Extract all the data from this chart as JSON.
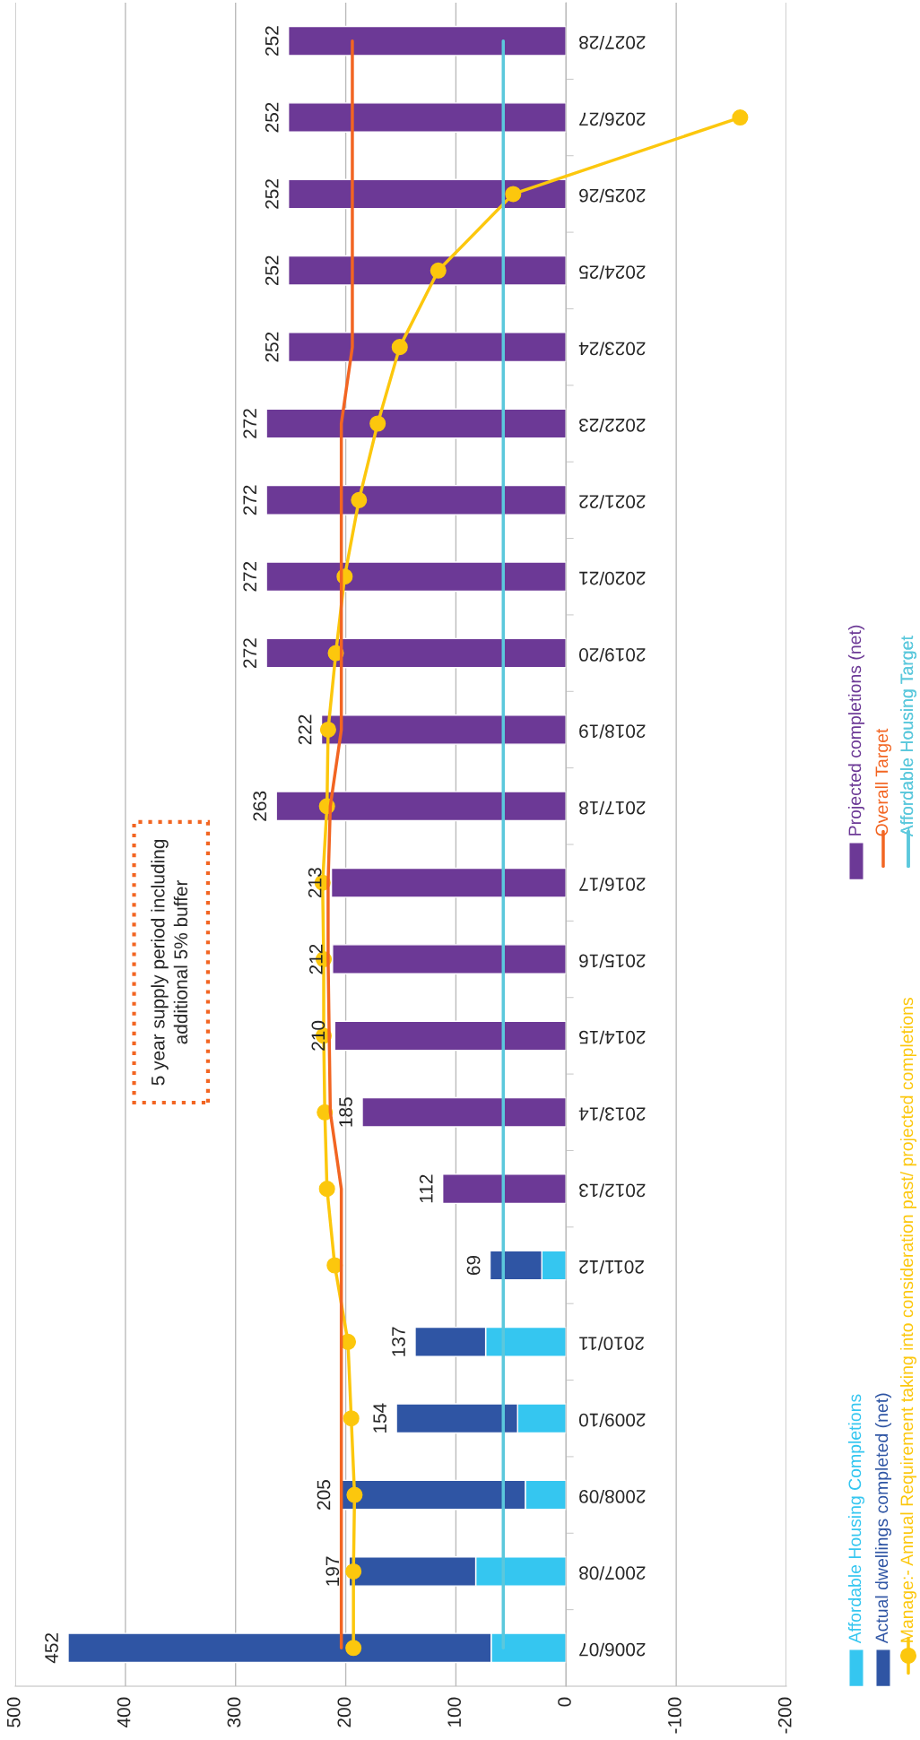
{
  "chart_data": {
    "type": "bar",
    "orientation": "horizontal",
    "stacked": true,
    "categories": [
      "2027/28",
      "2026/27",
      "2025/26",
      "2024/25",
      "2023/24",
      "2022/23",
      "2021/22",
      "2020/21",
      "2019/20",
      "2018/19",
      "2017/18",
      "2016/17",
      "2015/16",
      "2014/15",
      "2013/14",
      "2012/13",
      "2011/12",
      "2010/11",
      "2009/10",
      "2008/09",
      "2007/08",
      "2006/07"
    ],
    "series": [
      {
        "name": "Affordable Housing Completions",
        "type": "bar",
        "color": "#35c6f0",
        "values": [
          null,
          null,
          null,
          null,
          null,
          null,
          null,
          null,
          null,
          null,
          null,
          null,
          null,
          null,
          null,
          null,
          22,
          73,
          44,
          37,
          82,
          68
        ]
      },
      {
        "name": "Actual dwellings completed (net)",
        "type": "bar",
        "color": "#2f55a4",
        "values": [
          null,
          null,
          null,
          null,
          null,
          null,
          null,
          null,
          null,
          null,
          null,
          null,
          null,
          null,
          null,
          null,
          47,
          64,
          110,
          168,
          115,
          384
        ]
      },
      {
        "name": "Manage:- Annual Requirement taking into consideration past/ projected completions",
        "type": "line",
        "color": "#fcc70d",
        "marker": "circle",
        "values": [
          null,
          -158,
          48,
          116,
          151,
          171,
          188,
          201,
          209,
          216,
          217,
          221,
          220,
          220,
          219,
          217,
          210,
          198,
          195,
          192,
          193,
          193
        ]
      },
      {
        "name": "Projected completions (net)",
        "type": "bar",
        "color": "#6c3996",
        "values": [
          252,
          252,
          252,
          252,
          252,
          272,
          272,
          272,
          272,
          222,
          263,
          213,
          212,
          210,
          185,
          112,
          null,
          null,
          null,
          null,
          null,
          null
        ]
      },
      {
        "name": "Overall Target",
        "type": "line",
        "color": "#f26522",
        "values": [
          194,
          194,
          194,
          194,
          194,
          204,
          204,
          204,
          204,
          204,
          214,
          216,
          216,
          215,
          214,
          204,
          204,
          204,
          204,
          204,
          204,
          204
        ]
      },
      {
        "name": "Affordable Housing Target",
        "type": "line",
        "color": "#5bc8dc",
        "values": [
          57,
          57,
          57,
          57,
          57,
          57,
          57,
          57,
          57,
          57,
          57,
          57,
          57,
          57,
          57,
          57,
          57,
          57,
          57,
          57,
          57,
          57
        ]
      }
    ],
    "totals": [
      "252",
      "252",
      "252",
      "252",
      "252",
      "272",
      "272",
      "272",
      "272",
      "222",
      "263",
      "213",
      "212",
      "210",
      "185",
      "112",
      "69",
      "137",
      "154",
      "205",
      "197",
      "452"
    ],
    "xlim": [
      500,
      -200
    ],
    "xticks": [
      500,
      400,
      300,
      200,
      100,
      0,
      -100,
      -200
    ],
    "grid": "x",
    "legend": "right",
    "annotations": [
      "5 year supply period including\nadditional 5% buffer"
    ]
  }
}
